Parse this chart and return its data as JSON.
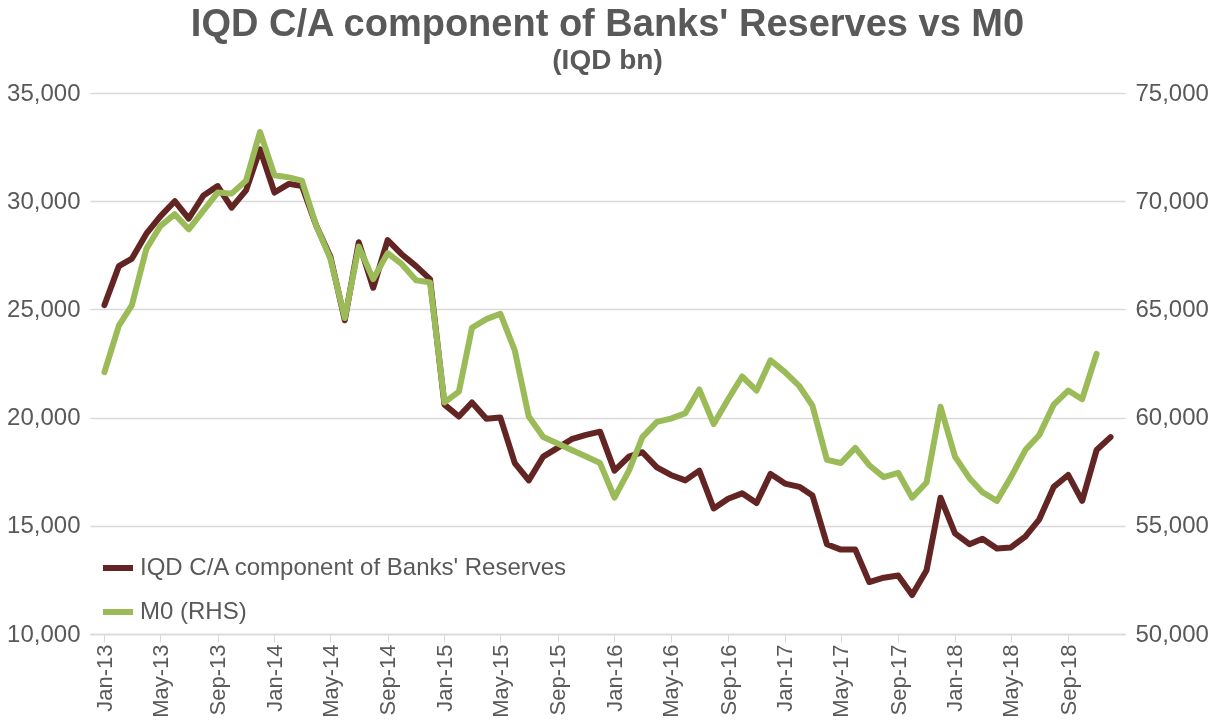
{
  "chart_data": {
    "type": "line",
    "title": "IQD C/A component of Banks' Reserves vs M0",
    "subtitle": "(IQD bn)",
    "x": [
      "2013-01",
      "2013-02",
      "2013-03",
      "2013-04",
      "2013-05",
      "2013-06",
      "2013-07",
      "2013-08",
      "2013-09",
      "2013-10",
      "2013-11",
      "2013-12",
      "2014-01",
      "2014-02",
      "2014-03",
      "2014-04",
      "2014-05",
      "2014-06",
      "2014-07",
      "2014-08",
      "2014-09",
      "2014-10",
      "2014-11",
      "2014-12",
      "2015-01",
      "2015-02",
      "2015-03",
      "2015-04",
      "2015-05",
      "2015-06",
      "2015-07",
      "2015-08",
      "2015-09",
      "2015-10",
      "2015-11",
      "2015-12",
      "2016-01",
      "2016-02",
      "2016-03",
      "2016-04",
      "2016-05",
      "2016-06",
      "2016-07",
      "2016-08",
      "2016-09",
      "2016-10",
      "2016-11",
      "2016-12",
      "2017-01",
      "2017-02",
      "2017-03",
      "2017-04",
      "2017-05",
      "2017-06",
      "2017-07",
      "2017-08",
      "2017-09",
      "2017-10",
      "2017-11",
      "2017-12",
      "2018-01",
      "2018-02",
      "2018-03",
      "2018-04",
      "2018-05",
      "2018-06",
      "2018-07",
      "2018-08",
      "2018-09",
      "2018-10",
      "2018-11",
      "2018-12"
    ],
    "series": [
      {
        "name": "IQD C/A component of Banks' Reserves",
        "color": "#632523",
        "values": [
          25200,
          27000,
          27350,
          28500,
          29300,
          30000,
          29200,
          30250,
          30700,
          29700,
          30500,
          32400,
          30400,
          30800,
          30700,
          28850,
          27450,
          24500,
          28100,
          26000,
          28200,
          27550,
          27000,
          26400,
          20600,
          20050,
          20700,
          19950,
          20000,
          17900,
          17100,
          18200,
          18600,
          19000,
          19200,
          19350,
          17550,
          18200,
          18400,
          17700,
          17350,
          17100,
          17550,
          15800,
          16250,
          16500,
          16050,
          17400,
          16950,
          16800,
          16400,
          14150,
          13900,
          13900,
          12400,
          12600,
          12700,
          11800,
          12950,
          16300,
          14650,
          14150,
          14400,
          13950,
          14000,
          14500,
          15300,
          16800,
          17350,
          16150,
          18500,
          19100
        ]
      },
      {
        "name": "M0 (RHS)",
        "color": "#9bbb59",
        "axis": "y2",
        "values": [
          62100,
          64250,
          65200,
          67800,
          68850,
          69400,
          68700,
          69550,
          70400,
          70350,
          70950,
          73200,
          71200,
          71100,
          70950,
          68850,
          67350,
          64600,
          67900,
          66400,
          67600,
          67100,
          66350,
          66250,
          60700,
          61200,
          64150,
          64550,
          64800,
          63100,
          60050,
          59100,
          58800,
          58500,
          58200,
          57900,
          56300,
          57550,
          59100,
          59800,
          59950,
          60200,
          61300,
          59700,
          60850,
          61900,
          61250,
          62650,
          62100,
          61450,
          60550,
          58050,
          57900,
          58600,
          57800,
          57250,
          57450,
          56300,
          57000,
          60500,
          58200,
          57200,
          56550,
          56150,
          57250,
          58500,
          59200,
          60600,
          61250,
          60850,
          62950,
          null
        ]
      }
    ],
    "xlim": [
      "2012-12",
      "2019-01"
    ],
    "xticks": [
      {
        "value": "2013-01",
        "label": "Jan-13"
      },
      {
        "value": "2013-05",
        "label": "May-13"
      },
      {
        "value": "2013-09",
        "label": "Sep-13"
      },
      {
        "value": "2014-01",
        "label": "Jan-14"
      },
      {
        "value": "2014-05",
        "label": "May-14"
      },
      {
        "value": "2014-09",
        "label": "Sep-14"
      },
      {
        "value": "2015-01",
        "label": "Jan-15"
      },
      {
        "value": "2015-05",
        "label": "May-15"
      },
      {
        "value": "2015-09",
        "label": "Sep-15"
      },
      {
        "value": "2016-01",
        "label": "Jan-16"
      },
      {
        "value": "2016-05",
        "label": "May-16"
      },
      {
        "value": "2016-09",
        "label": "Sep-16"
      },
      {
        "value": "2017-01",
        "label": "Jan-17"
      },
      {
        "value": "2017-05",
        "label": "May-17"
      },
      {
        "value": "2017-09",
        "label": "Sep-17"
      },
      {
        "value": "2018-01",
        "label": "Jan-18"
      },
      {
        "value": "2018-05",
        "label": "May-18"
      },
      {
        "value": "2018-09",
        "label": "Sep-18"
      }
    ],
    "ylim": [
      10000,
      35000
    ],
    "yticks": [
      {
        "value": 10000,
        "label": "10,000"
      },
      {
        "value": 15000,
        "label": "15,000"
      },
      {
        "value": 20000,
        "label": "20,000"
      },
      {
        "value": 25000,
        "label": "25,000"
      },
      {
        "value": 30000,
        "label": "30,000"
      },
      {
        "value": 35000,
        "label": "35,000"
      }
    ],
    "y2lim": [
      50000,
      75000
    ],
    "y2ticks": [
      {
        "value": 50000,
        "label": "50,000"
      },
      {
        "value": 55000,
        "label": "55,000"
      },
      {
        "value": 60000,
        "label": "60,000"
      },
      {
        "value": 65000,
        "label": "65,000"
      },
      {
        "value": 70000,
        "label": "70,000"
      },
      {
        "value": 75000,
        "label": "75,000"
      }
    ],
    "grid": "y",
    "legend": "bottom left",
    "marker": "none",
    "line_style": "solid"
  }
}
